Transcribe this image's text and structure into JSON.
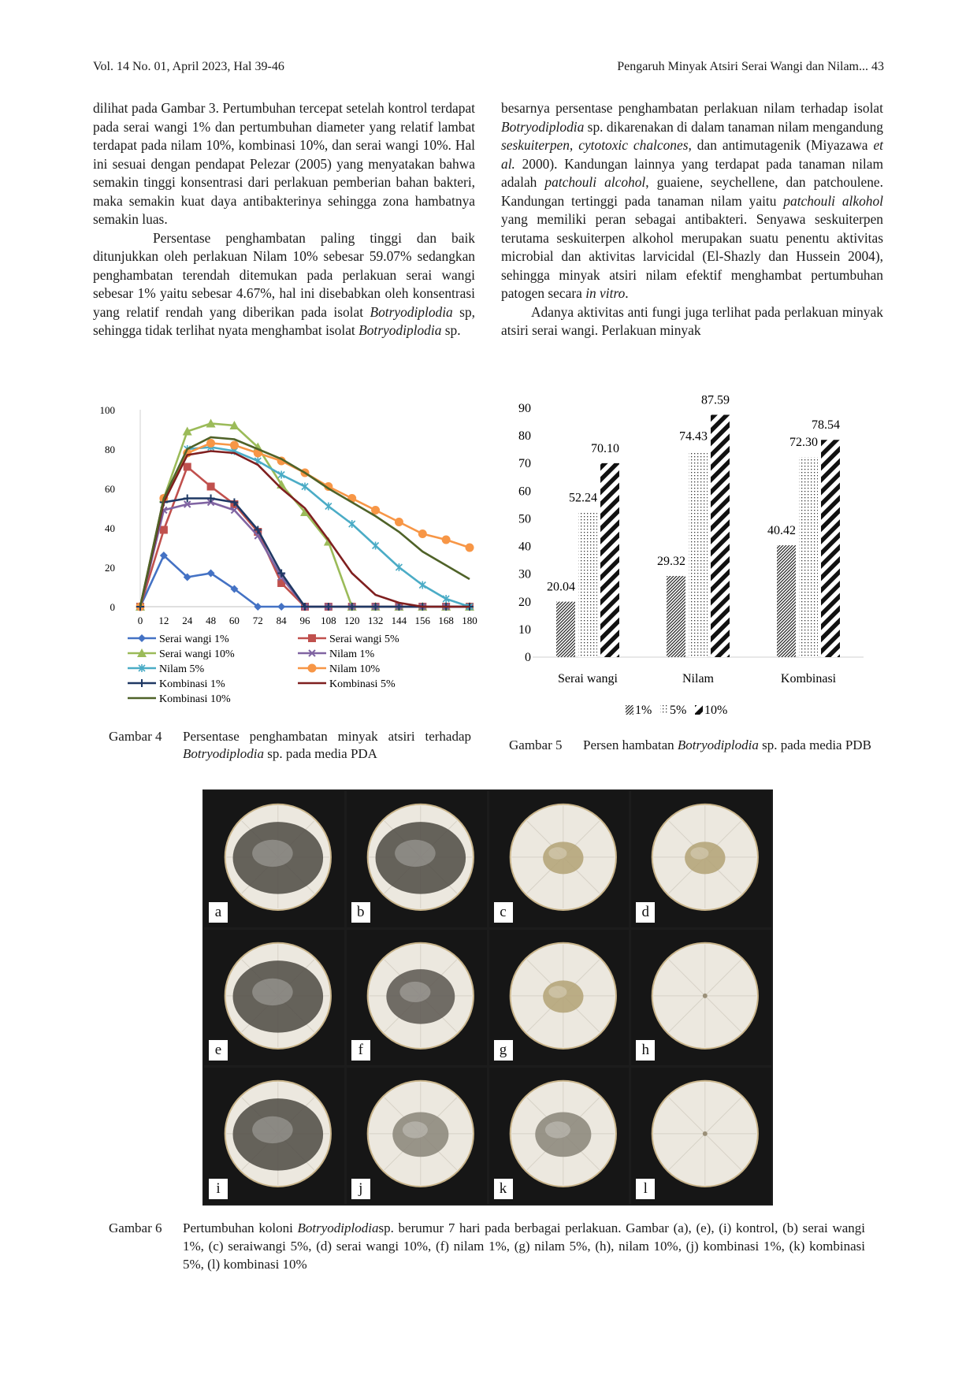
{
  "header": {
    "left": "Vol. 14 No. 01, April 2023, Hal 39-46",
    "right": "Pengaruh Minyak Atsiri Serai Wangi dan Nilam... 43"
  },
  "left_column": {
    "p1": "dilihat pada Gambar 3. Pertumbuhan tercepat setelah kontrol terdapat pada serai wangi 1% dan pertumbuhan diameter yang relatif lambat terdapat pada nilam 10%, kombinasi 10%, dan serai wangi 10%. Hal ini sesuai dengan pendapat Pelezar (2005) yang menyatakan bahwa semakin tinggi konsentrasi dari perlakuan pemberian bahan bakteri, maka semakin kuat daya antibakterinya sehingga zona hambatnya semakin luas.",
    "p2a": "Persentase penghambatan paling tinggi dan baik ditunjukkan oleh perlakuan Nilam 10% sebesar 59.07% sedangkan penghambatan terendah ditemukan pada perlakuan serai wangi sebesar 1% yaitu sebesar 4.67%, hal ini disebabkan oleh konsentrasi yang relatif rendah yang diberikan pada isolat ",
    "p2b": "Botryodiplodia",
    "p2c": " sp, sehingga tidak terlihat nyata menghambat isolat ",
    "p2d": "Botryodiplodia",
    "p2e": " sp."
  },
  "right_column": {
    "p1a": "besarnya persentase penghambatan perlakuan nilam terhadap isolat ",
    "p1b": "Botryodiplodia",
    "p1c": " sp. dikarenakan di dalam tanaman nilam mengandung ",
    "p1d": "seskuiterpen, cytotoxic chalcones,",
    "p1e": " dan antimutagenik (Miyazawa ",
    "p1f": "et al.",
    "p1g": " 2000). Kandungan lainnya yang terdapat pada tanaman nilam adalah ",
    "p1h": "patchouli alcohol",
    "p1i": ", guaiene, seychellene, dan patchoulene. Kandungan tertinggi pada tanaman nilam yaitu ",
    "p1j": "patchouli alkohol",
    "p1k": " yang memiliki peran sebagai antibakteri. Senyawa seskuiterpen terutama seskuiterpen alkohol merupakan suatu penentu aktivitas microbial dan aktivitas larvicidal (El-Shazly dan Hussein 2004), sehingga minyak atsiri nilam efektif menghambat pertumbuhan patogen secara ",
    "p1l": "in vitro",
    "p1m": ".",
    "p2": "Adanya aktivitas anti fungi juga terlihat pada perlakuan minyak atsiri serai wangi. Perlakuan minyak"
  },
  "figure4": {
    "caption_label": "Gambar 4",
    "caption_a": "Persentase penghambatan minyak atsiri terhadap ",
    "caption_b": "Botryodiplodia",
    "caption_c": " sp. pada media PDA"
  },
  "figure5": {
    "caption_label": "Gambar 5",
    "caption_a": "Persen hambatan ",
    "caption_b": "Botryodiplodia",
    "caption_c": " sp. pada media PDB"
  },
  "figure6": {
    "caption_label": "Gambar 6",
    "caption_a": "Pertumbuhan koloni ",
    "caption_b": "Botryodiplodia",
    "caption_c": "sp. berumur 7 hari pada berbagai perlakuan. Gambar (a), (e), (i) kontrol, (b) serai wangi 1%, (c) seraiwangi 5%, (d) serai wangi 10%, (f) nilam 1%, (g) nilam 5%, (h), nilam 10%, (j) kombinasi 1%, (k) kombinasi 5%, (l) kombinasi 10%",
    "panels": [
      {
        "label": "a",
        "colony": "dark-large"
      },
      {
        "label": "b",
        "colony": "dark-large"
      },
      {
        "label": "c",
        "colony": "tan-small"
      },
      {
        "label": "d",
        "colony": "tan-small"
      },
      {
        "label": "e",
        "colony": "dark-large"
      },
      {
        "label": "f",
        "colony": "dark-medium"
      },
      {
        "label": "g",
        "colony": "tan-small"
      },
      {
        "label": "h",
        "colony": "none"
      },
      {
        "label": "i",
        "colony": "dark-large"
      },
      {
        "label": "j",
        "colony": "grey-medium"
      },
      {
        "label": "k",
        "colony": "grey-medium"
      },
      {
        "label": "l",
        "colony": "none"
      }
    ]
  },
  "chart_data": [
    {
      "type": "line",
      "x": [
        0,
        12,
        24,
        48,
        60,
        72,
        84,
        96,
        108,
        120,
        132,
        144,
        156,
        168,
        180
      ],
      "ylim": [
        0,
        100
      ],
      "yticks": [
        0,
        20,
        40,
        60,
        80,
        100
      ],
      "legend_placement": "bottom",
      "series": [
        {
          "name": "Serai wangi 1%",
          "color": "#4472c4",
          "marker": "diamond",
          "values": [
            0,
            26,
            15,
            17,
            9,
            0,
            0,
            0,
            0,
            0,
            0,
            0,
            0,
            0,
            0
          ]
        },
        {
          "name": "Serai wangi 5%",
          "color": "#c0504d",
          "marker": "square",
          "values": [
            0,
            39,
            71,
            61,
            52,
            38,
            12,
            0,
            0,
            0,
            0,
            0,
            0,
            0,
            0
          ]
        },
        {
          "name": "Serai wangi 10%",
          "color": "#9bbb59",
          "marker": "triangle",
          "values": [
            0,
            55,
            89,
            93,
            92,
            81,
            62,
            48,
            33,
            0,
            0,
            0,
            0,
            0,
            0
          ]
        },
        {
          "name": "Nilam 1%",
          "color": "#8064a2",
          "marker": "x",
          "values": [
            0,
            49,
            52,
            53,
            49,
            36,
            15,
            0,
            0,
            0,
            0,
            0,
            0,
            0,
            0
          ]
        },
        {
          "name": "Nilam 5%",
          "color": "#4bacc6",
          "marker": "star",
          "values": [
            0,
            55,
            80,
            81,
            79,
            74,
            67,
            61,
            51,
            42,
            31,
            20,
            11,
            4,
            0
          ]
        },
        {
          "name": "Nilam 10%",
          "color": "#f79646",
          "marker": "circle",
          "values": [
            0,
            55,
            78,
            83,
            82,
            78,
            74,
            68,
            61,
            55,
            49,
            43,
            37,
            34,
            30
          ]
        },
        {
          "name": "Kombinasi 1%",
          "color": "#1f3864",
          "marker": "plus",
          "values": [
            0,
            53,
            55,
            55,
            53,
            39,
            17,
            0,
            0,
            0,
            0,
            0,
            0,
            0,
            0
          ]
        },
        {
          "name": "Kombinasi 5%",
          "color": "#7f1f1f",
          "marker": "none",
          "values": [
            0,
            53,
            77,
            79,
            78,
            72,
            60,
            50,
            34,
            17,
            6,
            2,
            0,
            0,
            0
          ]
        },
        {
          "name": "Kombinasi 10%",
          "color": "#4f6228",
          "marker": "none",
          "values": [
            0,
            55,
            80,
            86,
            85,
            80,
            75,
            68,
            60,
            53,
            46,
            38,
            28,
            21,
            14
          ]
        }
      ]
    },
    {
      "type": "bar",
      "categories": [
        "Serai wangi",
        "Nilam",
        "Kombinasi"
      ],
      "ylim": [
        0,
        90
      ],
      "yticks": [
        0,
        10,
        20,
        30,
        40,
        50,
        60,
        70,
        80,
        90
      ],
      "legend_placement": "bottom",
      "series": [
        {
          "name": "1%",
          "pattern": "hatch-dense",
          "values": [
            20.04,
            29.32,
            40.42
          ],
          "labels": [
            "20.04",
            "29.32",
            "40.42"
          ]
        },
        {
          "name": "5%",
          "pattern": "dots",
          "values": [
            52.24,
            74.43,
            72.3
          ],
          "labels": [
            "52.24",
            "74.43",
            "72.30"
          ]
        },
        {
          "name": "10%",
          "pattern": "stripes-bold",
          "values": [
            70.1,
            87.59,
            78.54
          ],
          "labels": [
            "70.10",
            "87.59",
            "78.54"
          ]
        }
      ]
    }
  ]
}
